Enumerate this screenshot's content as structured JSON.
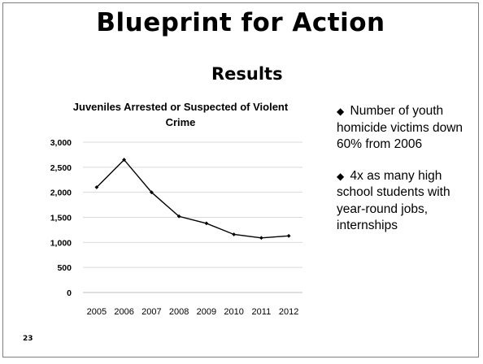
{
  "slide": {
    "title": "Blueprint for Action",
    "subtitle": "Results",
    "number": "23"
  },
  "bullets": [
    {
      "marker": "◆",
      "text": "Number of youth homicide victims down 60% from 2006"
    },
    {
      "marker": "◆",
      "text": "4x as many high school students with year-round jobs, internships"
    }
  ],
  "chart_data": {
    "type": "line",
    "title": "Juveniles Arrested or Suspected of Violent Crime",
    "x": [
      "2005",
      "2006",
      "2007",
      "2008",
      "2009",
      "2010",
      "2011",
      "2012"
    ],
    "series": [
      {
        "values": [
          2100,
          2650,
          2000,
          1520,
          1380,
          1160,
          1090,
          1130
        ]
      }
    ],
    "yticks": [
      "0",
      "500",
      "1,000",
      "1,500",
      "2,000",
      "2,500",
      "3,000"
    ],
    "ylim": [
      0,
      3000
    ],
    "grid": true,
    "color": "#000000"
  }
}
